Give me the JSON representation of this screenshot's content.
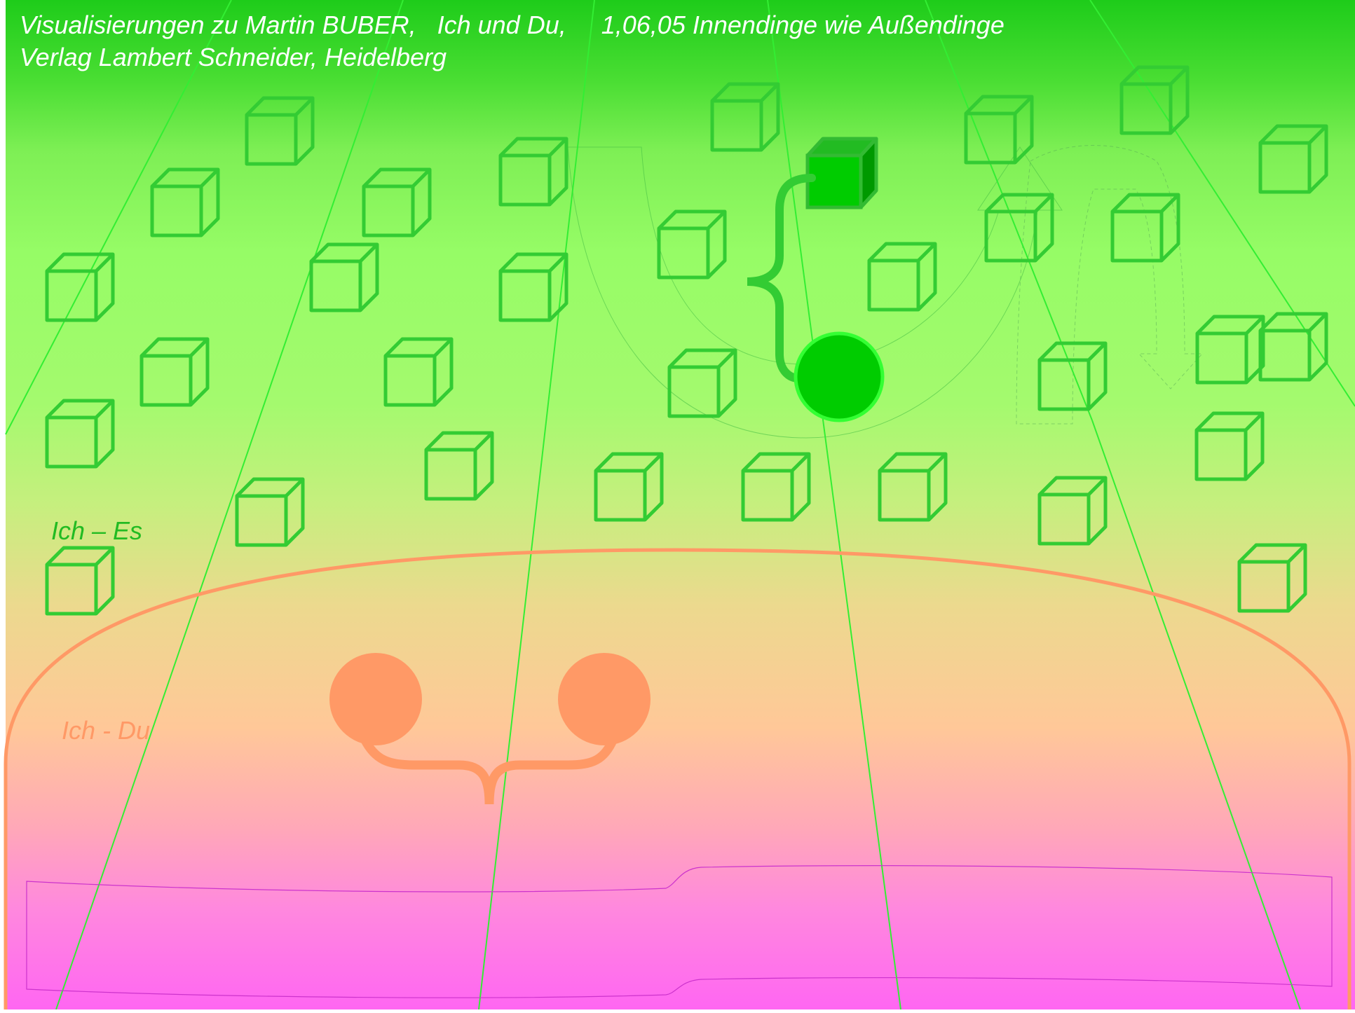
{
  "header": {
    "line1": "Visualisierungen zu Martin BUBER,   Ich und Du,     1,06,05 Innendinge wie Außendinge",
    "line2": "Verlag Lambert Schneider, Heidelberg"
  },
  "labels": {
    "ich_es": "Ich – Es",
    "ich_du": "Ich - Du"
  },
  "colors": {
    "top_green": "#22cc22",
    "mid_green": "#99ff66",
    "mid_yellow": "#ccee77",
    "peach": "#ffbb99",
    "magenta": "#ff66ff",
    "cube_stroke": "#33cc33",
    "perspective_line": "#33ee33",
    "solid_green": "#00cc00",
    "orange": "#ff9966",
    "magenta_line": "#cc33cc",
    "header_text": "#ffffff",
    "ich_es_text": "#22bb22",
    "ich_du_text": "#ff9966"
  }
}
